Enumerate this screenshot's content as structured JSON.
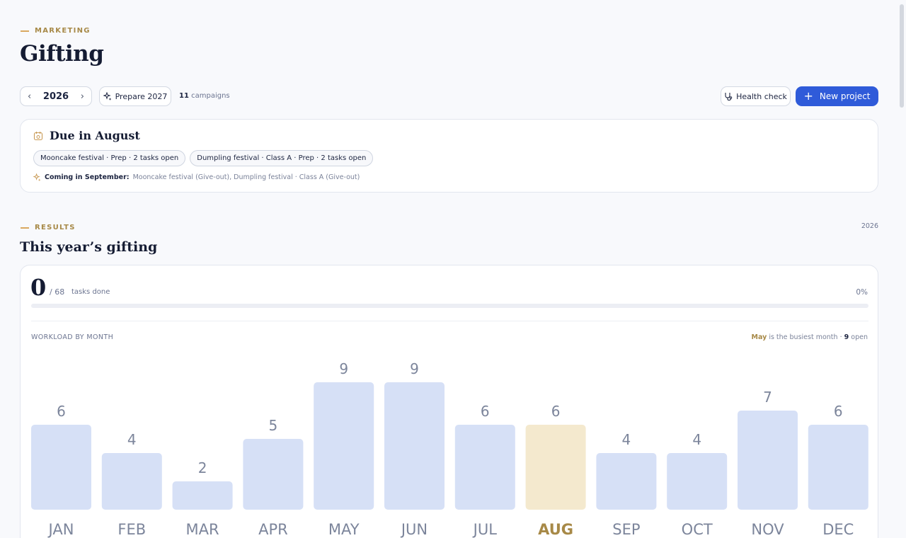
{
  "header": {
    "eyebrow": "MARKETING",
    "title": "Gifting"
  },
  "toolbar": {
    "year": "2026",
    "prepare_label": "Prepare 2027",
    "campaigns_count": "11",
    "campaigns_label": "campaigns",
    "health_label": "Health check",
    "new_project_label": "New project"
  },
  "due": {
    "title": "Due in August",
    "tags": [
      "Mooncake festival  ·  Prep  ·  2 tasks open",
      "Dumpling festival · Class A  ·  Prep  ·  2 tasks open"
    ],
    "coming_label": "Coming in September:",
    "coming_text": "Mooncake festival (Give-out), Dumpling festival · Class A (Give-out)"
  },
  "results": {
    "eyebrow": "RESULTS",
    "title": "This year’s gifting",
    "year": "2026",
    "done": "0",
    "total": "/ 68",
    "done_label": "tasks done",
    "percent": "0%",
    "progress": 0,
    "workload_label": "WORKLOAD BY MONTH",
    "busiest_month": "May",
    "busiest_text": "is the busiest month ·",
    "busiest_open": "9",
    "busiest_open_label": "open"
  },
  "colors": {
    "accent": "#2f5bd9",
    "bar": "#d6e0f6",
    "bar_highlight": "#f4e9ce",
    "highlight_text": "#a78947",
    "value_text": "#7c859b"
  },
  "chart_data": {
    "type": "bar",
    "categories": [
      "JAN",
      "FEB",
      "MAR",
      "APR",
      "MAY",
      "JUN",
      "JUL",
      "AUG",
      "SEP",
      "OCT",
      "NOV",
      "DEC"
    ],
    "values": [
      6,
      4,
      2,
      5,
      9,
      9,
      6,
      6,
      4,
      4,
      7,
      6
    ],
    "highlight_category": "AUG",
    "ylim": [
      0,
      9
    ]
  }
}
